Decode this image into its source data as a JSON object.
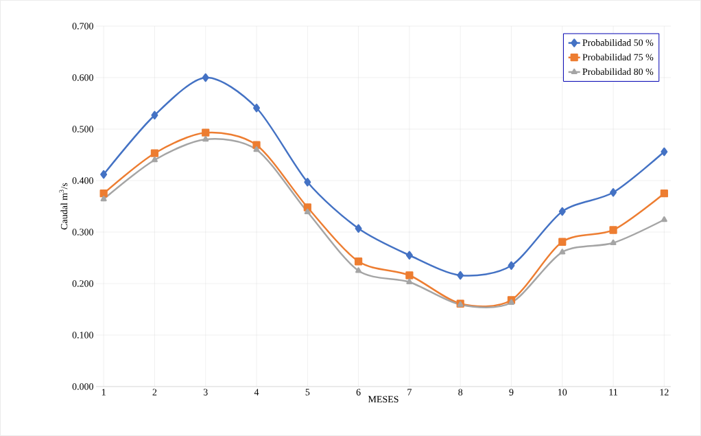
{
  "chart_data": {
    "type": "line",
    "xlabel": "MESES",
    "ylabel": "Caudal m$^{3}$/s",
    "categories": [
      "1",
      "2",
      "3",
      "4",
      "5",
      "6",
      "7",
      "8",
      "9",
      "10",
      "11",
      "12"
    ],
    "series": [
      {
        "name": "Probabilidad 50 %",
        "color": "#4472c4",
        "marker": "diamond",
        "values": [
          0.412,
          0.527,
          0.6,
          0.541,
          0.397,
          0.307,
          0.255,
          0.216,
          0.235,
          0.34,
          0.377,
          0.456
        ]
      },
      {
        "name": "Probabilidad 75 %",
        "color": "#ed7d31",
        "marker": "square",
        "values": [
          0.375,
          0.453,
          0.493,
          0.469,
          0.348,
          0.243,
          0.216,
          0.161,
          0.168,
          0.281,
          0.304,
          0.375
        ]
      },
      {
        "name": "Probabilidad 80 %",
        "color": "#a5a5a5",
        "marker": "triangle",
        "values": [
          0.364,
          0.44,
          0.48,
          0.46,
          0.339,
          0.225,
          0.203,
          0.159,
          0.163,
          0.261,
          0.279,
          0.324
        ]
      }
    ],
    "ylim": [
      0,
      0.7
    ],
    "yticks": [
      {
        "value": 0,
        "label": "0.000"
      },
      {
        "value": 0.1,
        "label": "0.100"
      },
      {
        "value": 0.2,
        "label": "0.200"
      },
      {
        "value": 0.3,
        "label": "0.300"
      },
      {
        "value": 0.4,
        "label": "0.400"
      },
      {
        "value": 0.5,
        "label": "0.500"
      },
      {
        "value": 0.6,
        "label": "0.600"
      },
      {
        "value": 0.7,
        "label": "0.700"
      }
    ],
    "grid": true,
    "legend": "top right",
    "line_style": "solid"
  }
}
